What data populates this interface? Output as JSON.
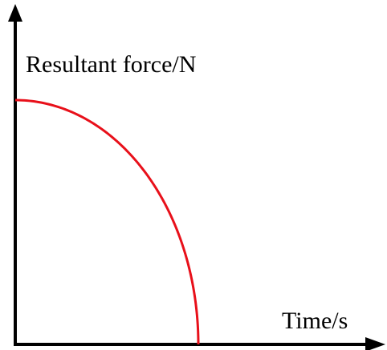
{
  "chart_data": {
    "type": "line",
    "title": "",
    "xlabel": "Time/s",
    "ylabel": "Resultant force/N",
    "series": [
      {
        "x": [
          0,
          0.1,
          0.2,
          0.3,
          0.4,
          0.5,
          0.6,
          0.7,
          0.8,
          0.9,
          0.95,
          1.0
        ],
        "values": [
          1.0,
          0.995,
          0.98,
          0.954,
          0.917,
          0.866,
          0.8,
          0.714,
          0.6,
          0.436,
          0.312,
          0
        ]
      }
    ],
    "grid": false,
    "ticks": false,
    "colors": {
      "curve": "#e8101a",
      "axis": "#000000"
    }
  }
}
